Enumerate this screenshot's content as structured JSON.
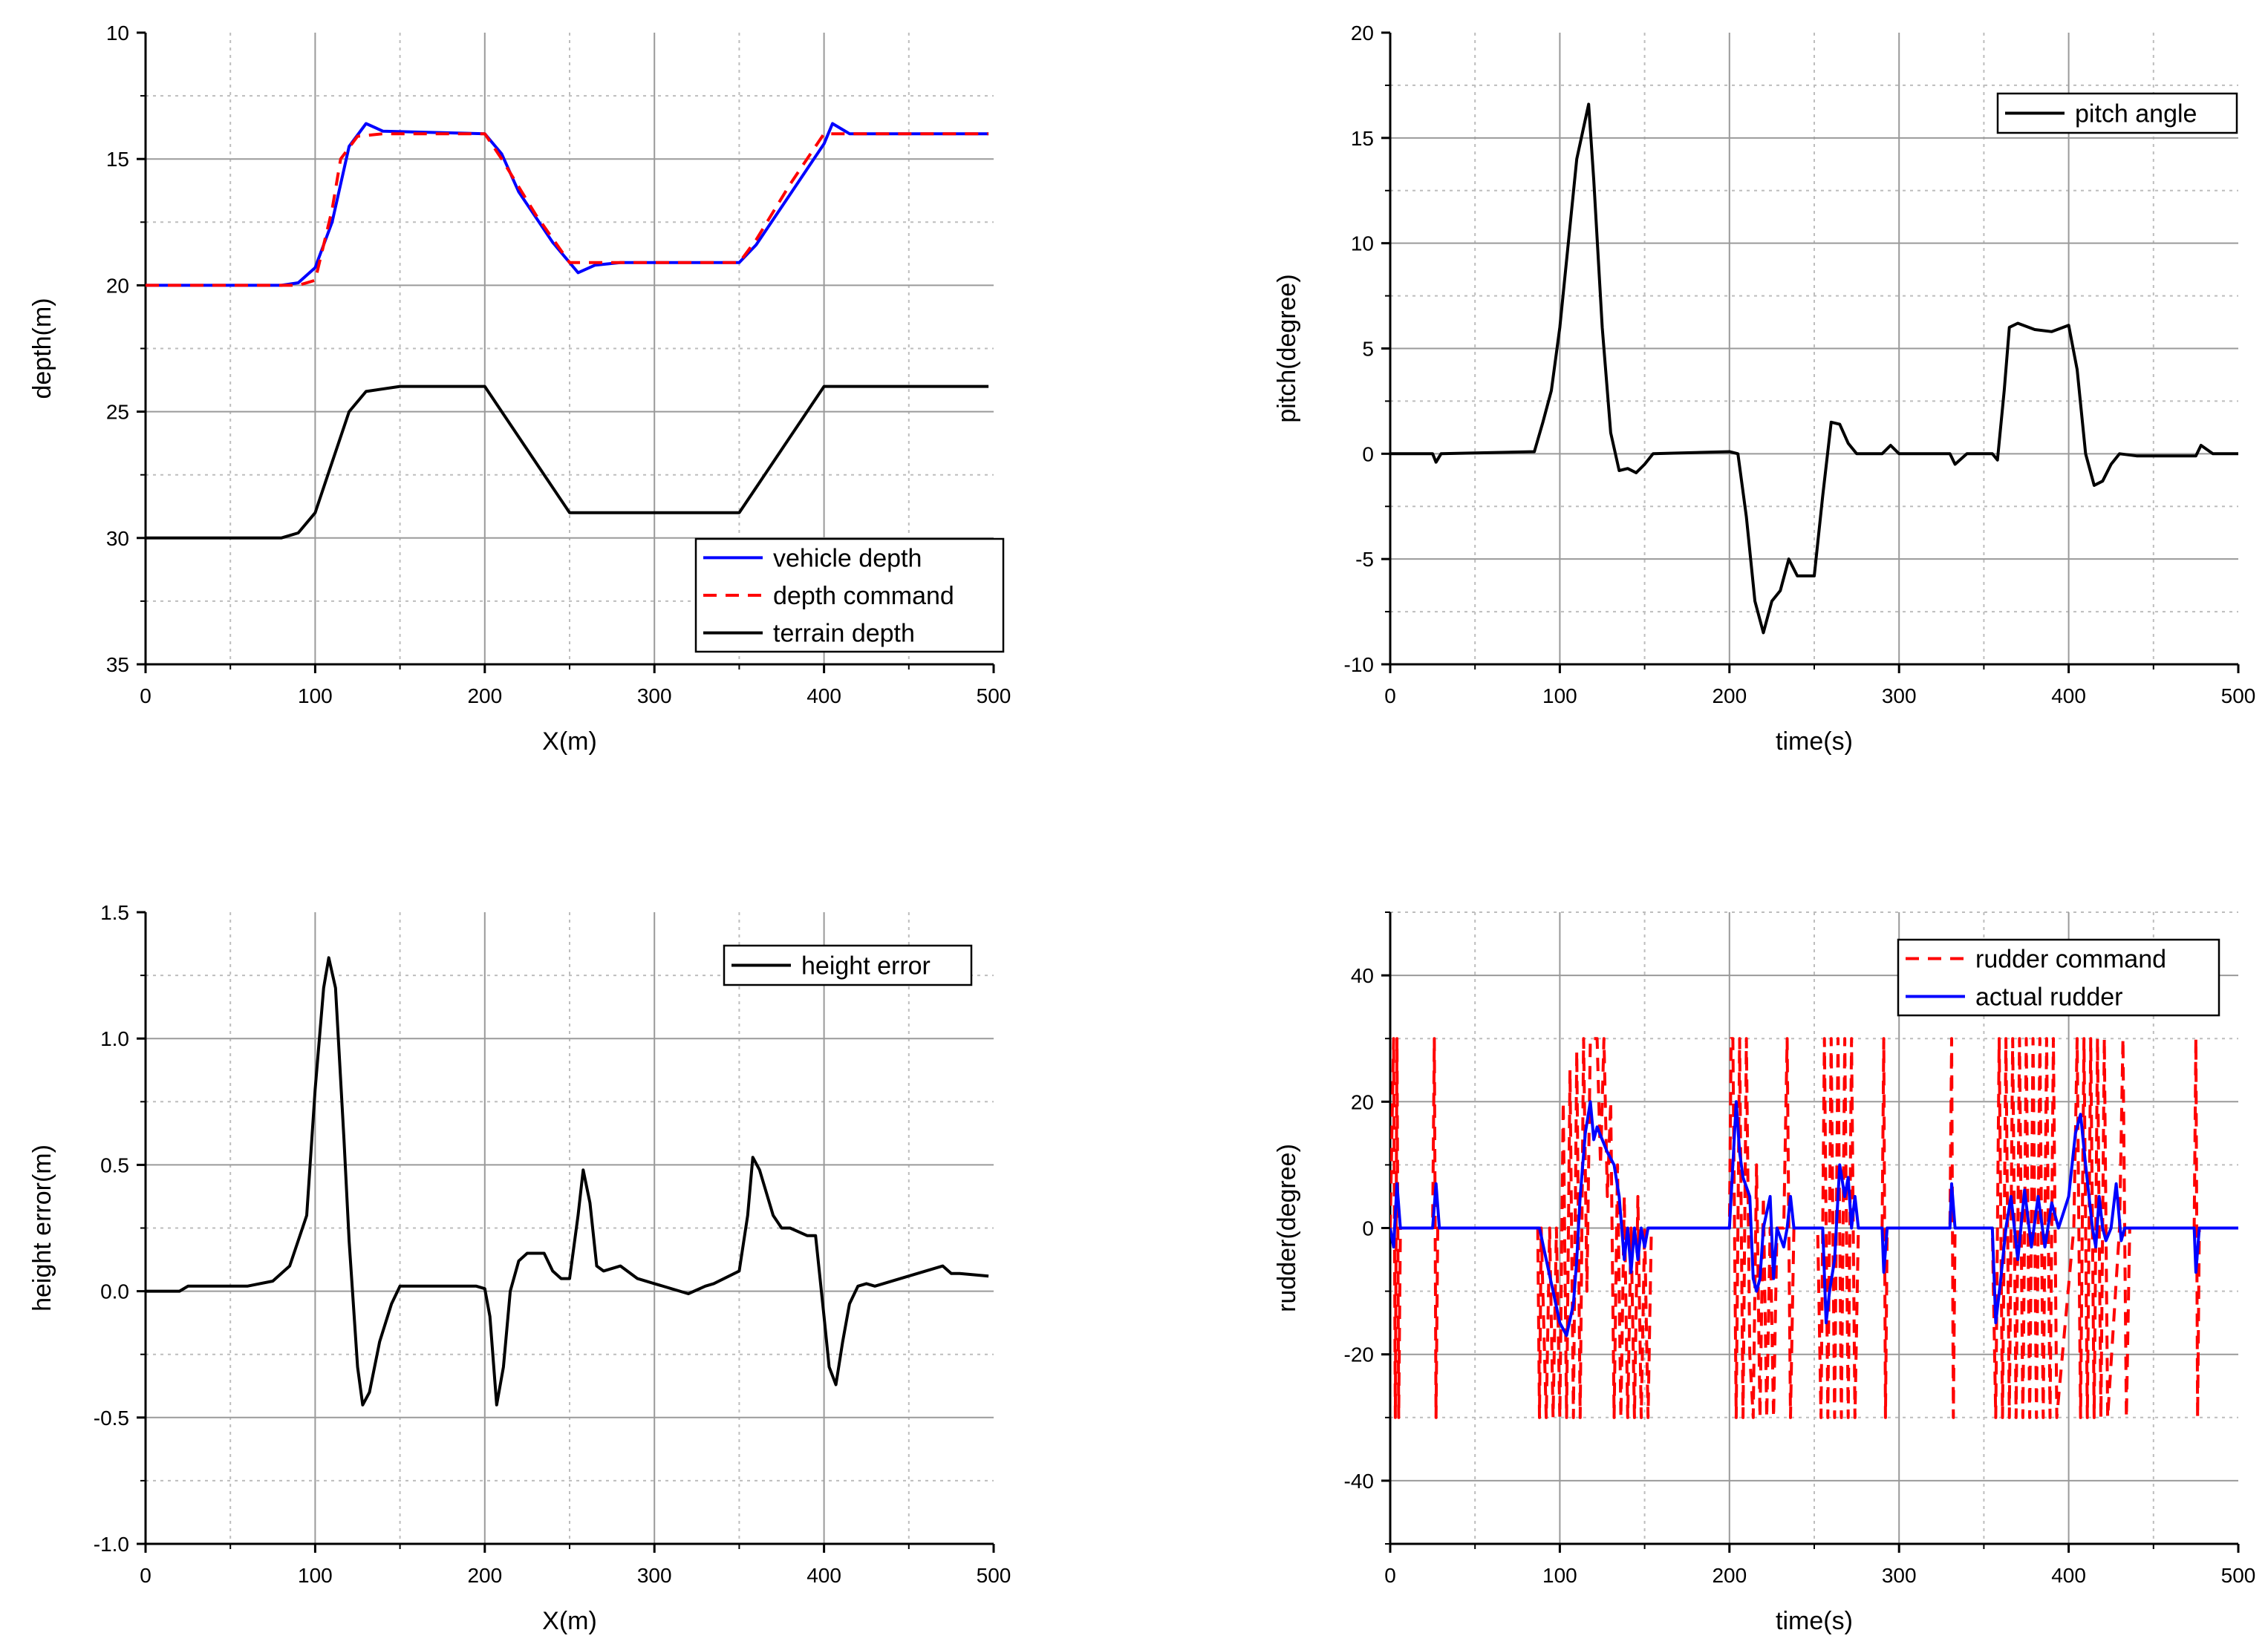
{
  "chart_data": [
    {
      "id": "depth",
      "type": "line",
      "title": "",
      "xlabel": "X(m)",
      "ylabel": "depth(m)",
      "xlim": [
        0,
        500
      ],
      "ylim": [
        10,
        35
      ],
      "y_inverted": true,
      "xticks": [
        0,
        100,
        200,
        300,
        400,
        500
      ],
      "yticks": [
        10,
        15,
        20,
        25,
        30,
        35
      ],
      "grid": true,
      "legend": "bottom-right",
      "series": [
        {
          "name": "vehicle depth",
          "color": "#0000ff",
          "dash": "solid",
          "x": [
            0,
            80,
            90,
            100,
            110,
            120,
            130,
            140,
            200,
            210,
            220,
            240,
            255,
            265,
            280,
            350,
            360,
            380,
            400,
            405,
            415,
            440,
            497
          ],
          "y": [
            20,
            20,
            19.9,
            19.3,
            17.5,
            14.5,
            13.6,
            13.9,
            14.0,
            14.8,
            16.3,
            18.3,
            19.5,
            19.2,
            19.1,
            19.1,
            18.4,
            16.4,
            14.4,
            13.6,
            14.0,
            14.0,
            14.0
          ]
        },
        {
          "name": "depth command",
          "color": "#ff0000",
          "dash": "dashed",
          "x": [
            0,
            90,
            100,
            110,
            115,
            125,
            140,
            200,
            210,
            230,
            250,
            260,
            350,
            360,
            380,
            400,
            410,
            497
          ],
          "y": [
            20,
            20,
            19.8,
            17.0,
            15.0,
            14.1,
            14.0,
            14.0,
            15.0,
            17.2,
            19.1,
            19.1,
            19.1,
            18.2,
            16.0,
            14.0,
            14.0,
            14.0
          ]
        },
        {
          "name": "terrain depth",
          "color": "#000000",
          "dash": "solid",
          "x": [
            0,
            80,
            90,
            100,
            110,
            120,
            130,
            150,
            200,
            250,
            350,
            400,
            497
          ],
          "y": [
            30,
            30,
            29.8,
            29.0,
            27.0,
            25.0,
            24.2,
            24.0,
            24.0,
            29.0,
            29.0,
            24.0,
            24.0
          ]
        }
      ]
    },
    {
      "id": "pitch",
      "type": "line",
      "title": "",
      "xlabel": "time(s)",
      "ylabel": "pitch(degree)",
      "xlim": [
        0,
        500
      ],
      "ylim": [
        -10,
        20
      ],
      "xticks": [
        0,
        100,
        200,
        300,
        400,
        500
      ],
      "yticks": [
        -10,
        -5,
        0,
        5,
        10,
        15,
        20
      ],
      "grid": true,
      "legend": "top-right",
      "series": [
        {
          "name": "pitch angle",
          "color": "#000000",
          "dash": "solid",
          "x": [
            0,
            25,
            27,
            30,
            85,
            90,
            95,
            100,
            105,
            110,
            117,
            120,
            125,
            130,
            135,
            140,
            145,
            150,
            155,
            200,
            205,
            210,
            215,
            220,
            225,
            230,
            235,
            240,
            250,
            255,
            260,
            265,
            270,
            275,
            280,
            290,
            295,
            300,
            330,
            333,
            340,
            355,
            358,
            362,
            365,
            370,
            380,
            390,
            400,
            405,
            410,
            415,
            420,
            425,
            430,
            440,
            475,
            478,
            485,
            500
          ],
          "y": [
            0,
            0,
            -0.4,
            0,
            0.1,
            1.5,
            3,
            6,
            10,
            14,
            16.6,
            13,
            6,
            1,
            -0.8,
            -0.7,
            -0.9,
            -0.5,
            0,
            0.1,
            0,
            -3,
            -7,
            -8.5,
            -7,
            -6.5,
            -5,
            -5.8,
            -5.8,
            -2,
            1.5,
            1.4,
            0.5,
            0,
            0,
            0,
            0.4,
            0,
            0,
            -0.5,
            0,
            0,
            -0.3,
            3,
            6,
            6.2,
            5.9,
            5.8,
            6.1,
            4,
            0,
            -1.5,
            -1.3,
            -0.5,
            0,
            -0.1,
            -0.1,
            0.4,
            0,
            0
          ]
        }
      ]
    },
    {
      "id": "height_error",
      "type": "line",
      "title": "",
      "xlabel": "X(m)",
      "ylabel": "height error(m)",
      "xlim": [
        0,
        500
      ],
      "ylim": [
        -1.0,
        1.5
      ],
      "xticks": [
        0,
        100,
        200,
        300,
        400,
        500
      ],
      "yticks": [
        -1.0,
        -0.5,
        0.0,
        0.5,
        1.0,
        1.5
      ],
      "grid": true,
      "legend": "top-right",
      "series": [
        {
          "name": "height error",
          "color": "#000000",
          "dash": "solid",
          "x": [
            0,
            20,
            25,
            60,
            75,
            85,
            95,
            100,
            105,
            108,
            112,
            117,
            120,
            125,
            128,
            132,
            138,
            145,
            150,
            195,
            200,
            203,
            207,
            211,
            215,
            220,
            225,
            235,
            240,
            245,
            250,
            255,
            258,
            262,
            266,
            270,
            280,
            290,
            300,
            320,
            330,
            335,
            350,
            355,
            358,
            362,
            370,
            375,
            380,
            390,
            395,
            400,
            403,
            407,
            411,
            415,
            420,
            425,
            430,
            445,
            470,
            475,
            480,
            497
          ],
          "y": [
            0,
            0,
            0.02,
            0.02,
            0.04,
            0.1,
            0.3,
            0.8,
            1.2,
            1.32,
            1.2,
            0.6,
            0.2,
            -0.3,
            -0.45,
            -0.4,
            -0.2,
            -0.05,
            0.02,
            0.02,
            0.01,
            -0.1,
            -0.45,
            -0.3,
            0,
            0.12,
            0.15,
            0.15,
            0.08,
            0.05,
            0.05,
            0.3,
            0.48,
            0.35,
            0.1,
            0.08,
            0.1,
            0.05,
            0.03,
            -0.01,
            0.02,
            0.03,
            0.08,
            0.3,
            0.53,
            0.48,
            0.3,
            0.25,
            0.25,
            0.22,
            0.22,
            -0.1,
            -0.3,
            -0.37,
            -0.2,
            -0.05,
            0.02,
            0.03,
            0.02,
            0.05,
            0.1,
            0.07,
            0.07,
            0.06
          ]
        }
      ]
    },
    {
      "id": "rudder",
      "type": "line",
      "title": "",
      "xlabel": "time(s)",
      "ylabel": "rudder(degree)",
      "xlim": [
        0,
        500
      ],
      "ylim": [
        -50,
        50
      ],
      "xticks": [
        0,
        100,
        200,
        300,
        400,
        500
      ],
      "yticks": [
        -40,
        -20,
        0,
        20,
        40
      ],
      "grid": true,
      "legend": "top-right",
      "series": [
        {
          "name": "rudder command",
          "color": "#ff0000",
          "dash": "dashed",
          "x": [
            0,
            2,
            3,
            4,
            5,
            6,
            25,
            26,
            27,
            28,
            87,
            88,
            89,
            92,
            94,
            96,
            98,
            100,
            102,
            104,
            106,
            108,
            110,
            112,
            114,
            116,
            118,
            120,
            122,
            124,
            126,
            128,
            130,
            132,
            134,
            136,
            138,
            140,
            142,
            144,
            146,
            148,
            150,
            152,
            154,
            200,
            201,
            202,
            204,
            206,
            208,
            210,
            212,
            214,
            216,
            218,
            220,
            222,
            224,
            226,
            228,
            232,
            234,
            236,
            238,
            240,
            252,
            254,
            256,
            258,
            260,
            262,
            264,
            266,
            268,
            270,
            272,
            274,
            276,
            290,
            291,
            292,
            293,
            330,
            331,
            332,
            333,
            355,
            357,
            359,
            361,
            363,
            365,
            367,
            369,
            371,
            373,
            375,
            377,
            379,
            381,
            383,
            385,
            387,
            389,
            391,
            393,
            403,
            405,
            407,
            409,
            411,
            413,
            415,
            417,
            419,
            421,
            423,
            430,
            432,
            434,
            436,
            474,
            475,
            476,
            477,
            500
          ],
          "y": [
            0,
            30,
            -30,
            30,
            -30,
            0,
            0,
            30,
            -30,
            0,
            0,
            -30,
            0,
            -30,
            0,
            -30,
            0,
            -30,
            20,
            -30,
            25,
            -30,
            28,
            -30,
            30,
            -10,
            30,
            30,
            30,
            10,
            30,
            5,
            20,
            -30,
            10,
            -30,
            5,
            -30,
            0,
            -30,
            5,
            -30,
            0,
            -30,
            0,
            0,
            30,
            30,
            -30,
            30,
            -30,
            30,
            -20,
            -30,
            10,
            -30,
            5,
            -30,
            0,
            -30,
            0,
            0,
            30,
            -30,
            0,
            0,
            0,
            -30,
            30,
            -30,
            30,
            -30,
            30,
            -30,
            30,
            -30,
            30,
            -30,
            0,
            0,
            30,
            -30,
            0,
            0,
            30,
            -30,
            0,
            0,
            -30,
            30,
            -30,
            30,
            -30,
            30,
            -30,
            30,
            -30,
            30,
            -30,
            30,
            -30,
            30,
            -30,
            30,
            -30,
            30,
            -30,
            0,
            30,
            -30,
            30,
            -30,
            30,
            -30,
            30,
            -30,
            30,
            -30,
            0,
            30,
            -30,
            0,
            0,
            30,
            -30,
            0,
            0
          ]
        },
        {
          "name": "actual rudder",
          "color": "#0000ff",
          "dash": "solid",
          "x": [
            0,
            2,
            4,
            6,
            25,
            27,
            29,
            88,
            92,
            96,
            100,
            104,
            108,
            110,
            112,
            115,
            118,
            120,
            122,
            125,
            128,
            132,
            135,
            138,
            140,
            142,
            144,
            146,
            148,
            150,
            152,
            154,
            200,
            202,
            204,
            206,
            208,
            212,
            214,
            216,
            218,
            220,
            224,
            226,
            228,
            232,
            234,
            236,
            238,
            240,
            255,
            257,
            259,
            262,
            265,
            268,
            270,
            272,
            274,
            276,
            290,
            291,
            293,
            330,
            331,
            333,
            355,
            357,
            360,
            363,
            366,
            370,
            374,
            378,
            382,
            386,
            390,
            394,
            400,
            404,
            407,
            410,
            412,
            414,
            416,
            418,
            420,
            422,
            425,
            428,
            431,
            433,
            436,
            474,
            475,
            477,
            500
          ],
          "y": [
            0,
            -3,
            7,
            0,
            0,
            7,
            0,
            0,
            -5,
            -10,
            -15,
            -17,
            -12,
            -5,
            5,
            15,
            20,
            14,
            16,
            14,
            12,
            10,
            5,
            -5,
            0,
            -7,
            0,
            -5,
            0,
            -3,
            0,
            0,
            0,
            10,
            20,
            12,
            8,
            5,
            -8,
            -10,
            -8,
            0,
            5,
            -8,
            0,
            -3,
            0,
            5,
            0,
            0,
            0,
            -15,
            -10,
            -5,
            10,
            5,
            8,
            0,
            5,
            0,
            0,
            -7,
            0,
            0,
            7,
            0,
            0,
            -15,
            -8,
            0,
            5,
            -5,
            6,
            -3,
            5,
            -3,
            4,
            0,
            5,
            15,
            18,
            10,
            5,
            0,
            -3,
            5,
            0,
            -2,
            0,
            7,
            -2,
            0,
            0,
            0,
            -7,
            0,
            0
          ]
        }
      ]
    }
  ]
}
